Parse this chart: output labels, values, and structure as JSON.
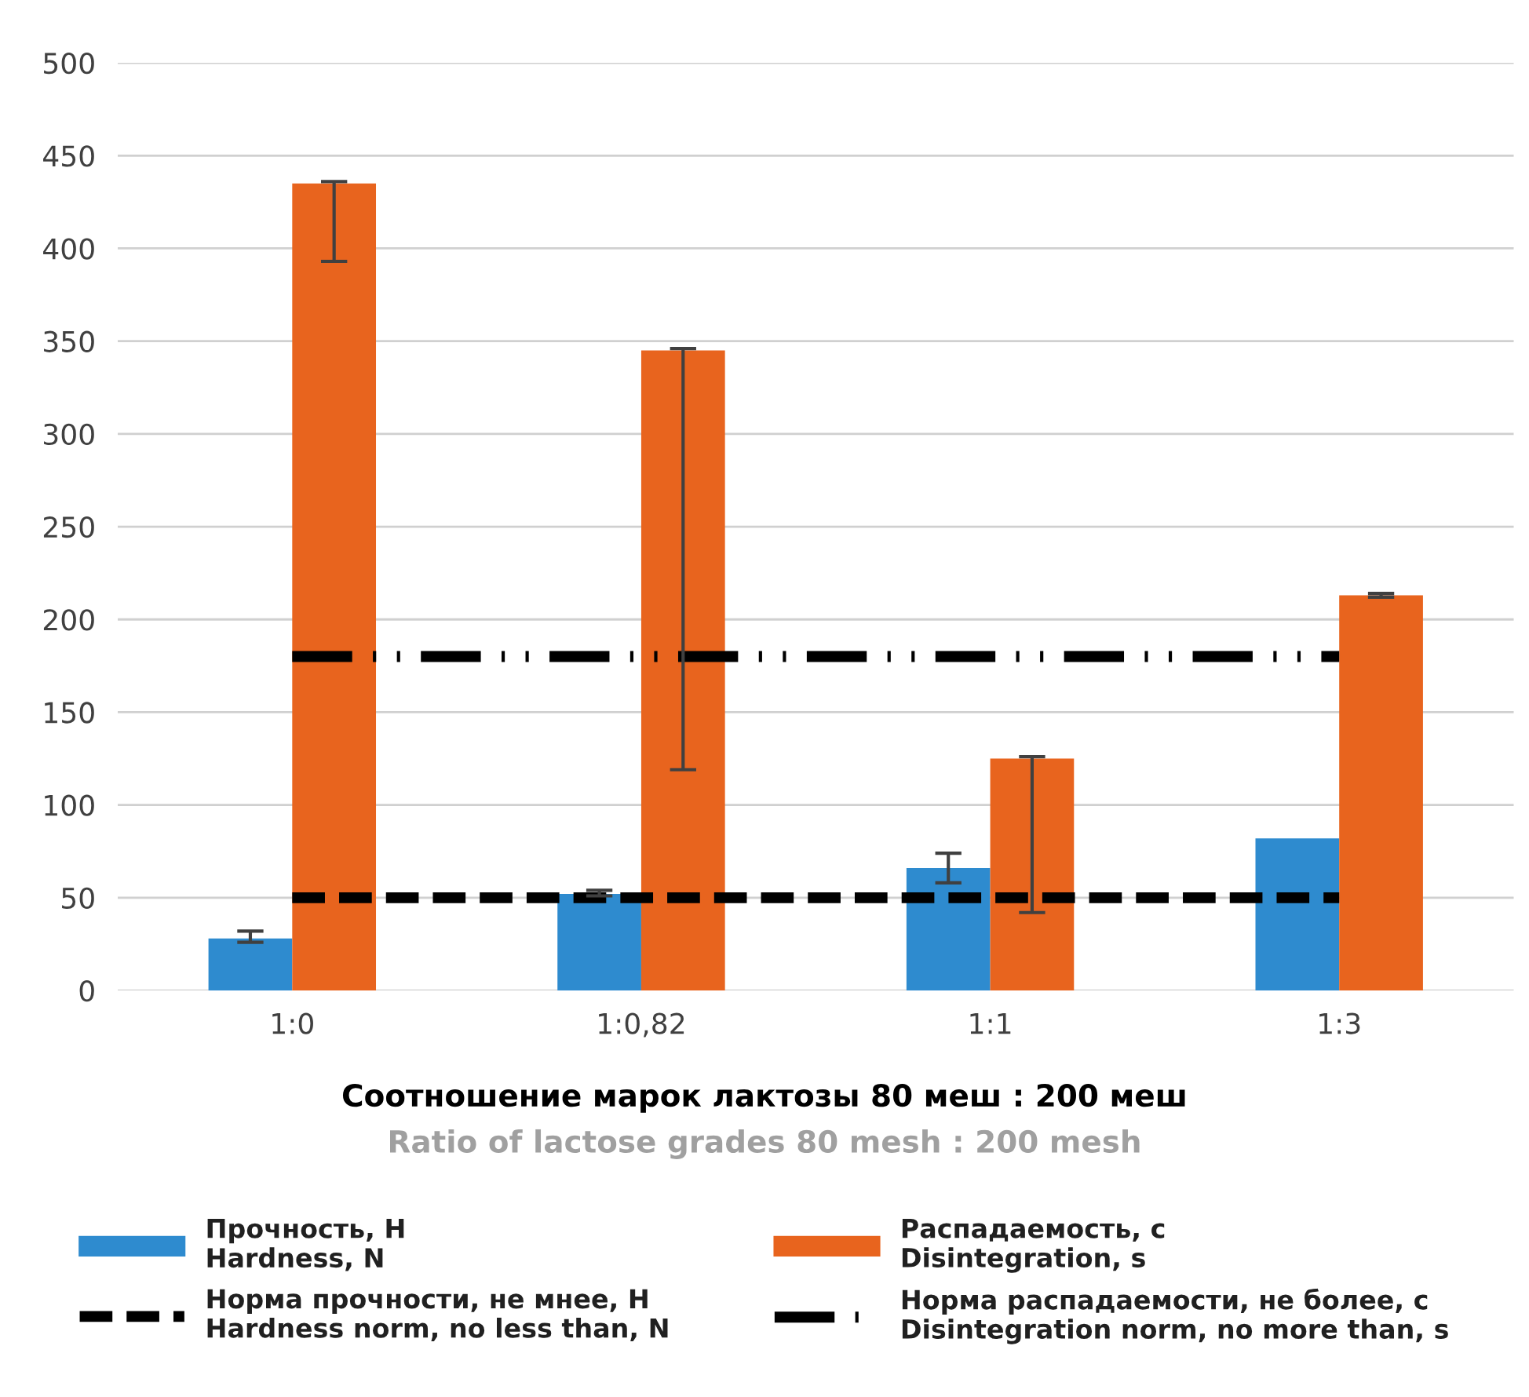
{
  "chart_data": {
    "type": "bar",
    "categories": [
      "1:0",
      "1:0,82",
      "1:1",
      "1:3"
    ],
    "xlabel": "Соотношение марок лактозы 80 меш : 200 меш\nRatio of lactose grades 80 mesh : 200 mesh",
    "series": [
      {
        "name": "Прочность, Н\nHardness, N",
        "color": "#2e8bcf",
        "values": [
          28,
          52,
          66,
          82
        ],
        "errors": [
          [
            26,
            32
          ],
          [
            51,
            54
          ],
          [
            58,
            74
          ],
          null
        ]
      },
      {
        "name": "Распадаемость, с\nDisintegration, s",
        "color": "#e8641e",
        "values": [
          435,
          345,
          125,
          213
        ],
        "errors": [
          [
            393,
            436
          ],
          [
            119,
            346
          ],
          [
            42,
            126
          ],
          [
            212,
            214
          ]
        ]
      },
      {
        "name": "Норма прочности, не мнее, Н\nHardness norm, no less than, N",
        "type": "line",
        "color": "#000000",
        "line_style": "dashed",
        "marker": "none",
        "values": [
          50,
          50,
          50,
          50
        ]
      },
      {
        "name": "Норма распадаемости, не более, с\nDisintegration norm, no more than, s",
        "type": "line",
        "color": "#000000",
        "line_style": "dashdotdot",
        "marker": "none",
        "values": [
          180,
          180,
          180,
          180
        ]
      }
    ],
    "ylim": [
      0,
      500
    ],
    "yticks": [
      0,
      50,
      100,
      150,
      200,
      250,
      300,
      350,
      400,
      450,
      500
    ],
    "grid": "y",
    "legend": "bottom"
  }
}
